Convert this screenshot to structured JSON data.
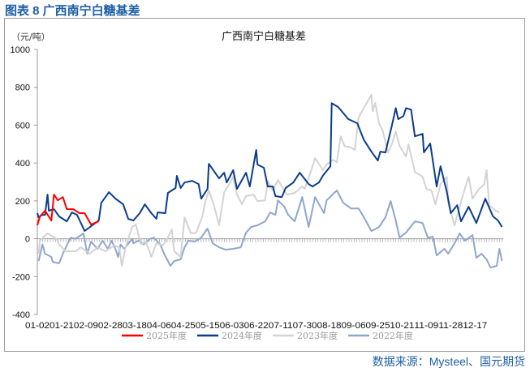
{
  "figure_label": "图表 8  广西南宁白糖基差",
  "source": "数据来源：Mysteel、国元期货",
  "chart_data": {
    "type": "line",
    "title": "广西南宁白糖基差",
    "ylabel": "（元/吨）",
    "xlabel": "",
    "ylim": [
      -400,
      1000
    ],
    "yticks": [
      "1000",
      "800",
      "600",
      "400",
      "200",
      "0",
      "-200",
      "-400"
    ],
    "xticks": [
      "01-02",
      "01-21",
      "02-09",
      "02-28",
      "03-18",
      "04-06",
      "04-25",
      "05-15",
      "06-03",
      "06-22",
      "07-11",
      "07-30",
      "08-18",
      "09-06",
      "09-25",
      "10-21",
      "11-09",
      "11-28",
      "12-17"
    ],
    "grid": false,
    "legend_position": "bottom",
    "series": [
      {
        "name": "2025年度",
        "color": "#ff0000",
        "points": [
          [
            "01-02",
            71
          ],
          [
            "01-04",
            118
          ],
          [
            "01-08",
            148
          ],
          [
            "01-13",
            96
          ],
          [
            "01-15",
            233
          ],
          [
            "01-18",
            203
          ],
          [
            "01-22",
            220
          ],
          [
            "01-25",
            156
          ],
          [
            "01-30",
            156
          ],
          [
            "02-04",
            135
          ],
          [
            "02-08",
            135
          ],
          [
            "02-13",
            75
          ],
          [
            "02-19",
            92
          ]
        ]
      },
      {
        "name": "2024年度",
        "color": "#0b3d8d",
        "points": [
          [
            "01-02",
            135
          ],
          [
            "01-03",
            113
          ],
          [
            "01-06",
            126
          ],
          [
            "01-08",
            126
          ],
          [
            "01-10",
            233
          ],
          [
            "01-11",
            148
          ],
          [
            "01-15",
            156
          ],
          [
            "01-19",
            118
          ],
          [
            "01-25",
            92
          ],
          [
            "01-29",
            139
          ],
          [
            "02-02",
            126
          ],
          [
            "02-08",
            41
          ],
          [
            "02-19",
            96
          ],
          [
            "02-21",
            190
          ],
          [
            "02-27",
            246
          ],
          [
            "03-04",
            212
          ],
          [
            "03-10",
            182
          ],
          [
            "03-14",
            105
          ],
          [
            "03-18",
            96
          ],
          [
            "03-23",
            135
          ],
          [
            "03-27",
            182
          ],
          [
            "04-01",
            135
          ],
          [
            "04-05",
            105
          ],
          [
            "04-06",
            139
          ],
          [
            "04-12",
            135
          ],
          [
            "04-14",
            242
          ],
          [
            "04-20",
            268
          ],
          [
            "04-21",
            332
          ],
          [
            "04-24",
            268
          ],
          [
            "04-27",
            297
          ],
          [
            "05-03",
            306
          ],
          [
            "05-08",
            289
          ],
          [
            "05-10",
            212
          ],
          [
            "05-15",
            263
          ],
          [
            "05-16",
            396
          ],
          [
            "05-24",
            319
          ],
          [
            "05-28",
            349
          ],
          [
            "05-30",
            297
          ],
          [
            "06-04",
            362
          ],
          [
            "06-07",
            263
          ],
          [
            "06-14",
            349
          ],
          [
            "06-17",
            276
          ],
          [
            "06-22",
            469
          ],
          [
            "06-23",
            392
          ],
          [
            "06-28",
            375
          ],
          [
            "07-01",
            276
          ],
          [
            "07-05",
            276
          ],
          [
            "07-07",
            225
          ],
          [
            "07-12",
            220
          ],
          [
            "07-15",
            268
          ],
          [
            "07-21",
            297
          ],
          [
            "07-26",
            349
          ],
          [
            "08-02",
            289
          ],
          [
            "08-05",
            276
          ],
          [
            "08-10",
            297
          ],
          [
            "08-13",
            332
          ],
          [
            "08-19",
            383
          ],
          [
            "08-20",
            716
          ],
          [
            "08-25",
            696
          ],
          [
            "09-02",
            632
          ],
          [
            "09-09",
            610
          ],
          [
            "09-14",
            524
          ],
          [
            "09-20",
            460
          ],
          [
            "09-25",
            413
          ],
          [
            "09-27",
            460
          ],
          [
            "10-01",
            456
          ],
          [
            "10-06",
            597
          ],
          [
            "10-09",
            690
          ],
          [
            "10-11",
            632
          ],
          [
            "10-15",
            648
          ],
          [
            "10-17",
            690
          ],
          [
            "10-21",
            682
          ],
          [
            "10-24",
            541
          ],
          [
            "10-30",
            554
          ],
          [
            "10-31",
            456
          ],
          [
            "11-05",
            503
          ],
          [
            "11-10",
            276
          ],
          [
            "11-13",
            383
          ],
          [
            "11-18",
            246
          ],
          [
            "11-21",
            135
          ],
          [
            "11-26",
            177
          ],
          [
            "11-29",
            92
          ],
          [
            "12-05",
            169
          ],
          [
            "12-11",
            83
          ],
          [
            "12-18",
            212
          ],
          [
            "12-24",
            118
          ],
          [
            "12-28",
            96
          ],
          [
            "12-31",
            62
          ]
        ]
      },
      {
        "name": "2023年度",
        "color": "#d3d3d3",
        "points": [
          [
            "01-03",
            -79
          ],
          [
            "01-04",
            -10
          ],
          [
            "01-10",
            28
          ],
          [
            "01-17",
            0
          ],
          [
            "01-19",
            -30
          ],
          [
            "01-24",
            -66
          ],
          [
            "02-01",
            -66
          ],
          [
            "02-05",
            -45
          ],
          [
            "02-12",
            -79
          ],
          [
            "02-18",
            -45
          ],
          [
            "02-24",
            -66
          ],
          [
            "03-03",
            -36
          ],
          [
            "03-07",
            -45
          ],
          [
            "03-09",
            -143
          ],
          [
            "03-12",
            -45
          ],
          [
            "03-17",
            62
          ],
          [
            "03-20",
            75
          ],
          [
            "03-24",
            -30
          ],
          [
            "03-28",
            -15
          ],
          [
            "04-01",
            -96
          ],
          [
            "04-05",
            -24
          ],
          [
            "04-10",
            -36
          ],
          [
            "04-14",
            6
          ],
          [
            "04-17",
            49
          ],
          [
            "04-19",
            -66
          ],
          [
            "04-24",
            -96
          ],
          [
            "04-27",
            113
          ],
          [
            "05-02",
            28
          ],
          [
            "05-06",
            32
          ],
          [
            "05-11",
            118
          ],
          [
            "05-13",
            190
          ],
          [
            "05-16",
            255
          ],
          [
            "05-20",
            177
          ],
          [
            "05-24",
            71
          ],
          [
            "05-28",
            246
          ],
          [
            "06-01",
            289
          ],
          [
            "06-04",
            327
          ],
          [
            "06-07",
            233
          ],
          [
            "06-11",
            182
          ],
          [
            "06-14",
            225
          ],
          [
            "06-20",
            233
          ],
          [
            "06-23",
            199
          ],
          [
            "06-29",
            203
          ],
          [
            "07-01",
            306
          ],
          [
            "07-05",
            255
          ],
          [
            "07-09",
            310
          ],
          [
            "07-16",
            233
          ],
          [
            "07-22",
            242
          ],
          [
            "07-28",
            276
          ],
          [
            "07-30",
            263
          ],
          [
            "08-04",
            362
          ],
          [
            "08-07",
            426
          ],
          [
            "08-10",
            396
          ],
          [
            "08-13",
            362
          ],
          [
            "08-16",
            392
          ],
          [
            "08-21",
            417
          ],
          [
            "08-24",
            404
          ],
          [
            "08-27",
            541
          ],
          [
            "08-30",
            490
          ],
          [
            "09-04",
            482
          ],
          [
            "09-07",
            469
          ],
          [
            "09-10",
            640
          ],
          [
            "09-14",
            690
          ],
          [
            "09-20",
            760
          ],
          [
            "09-21",
            674
          ],
          [
            "09-23",
            717
          ],
          [
            "09-26",
            610
          ],
          [
            "09-29",
            567
          ],
          [
            "10-03",
            456
          ],
          [
            "10-06",
            499
          ],
          [
            "10-09",
            567
          ],
          [
            "10-12",
            490
          ],
          [
            "10-17",
            434
          ],
          [
            "10-19",
            499
          ],
          [
            "10-24",
            353
          ],
          [
            "10-30",
            327
          ],
          [
            "11-02",
            263
          ],
          [
            "11-06",
            255
          ],
          [
            "11-09",
            182
          ],
          [
            "11-13",
            289
          ],
          [
            "11-18",
            327
          ],
          [
            "11-19",
            190
          ],
          [
            "11-24",
            71
          ],
          [
            "11-30",
            220
          ],
          [
            "12-05",
            327
          ],
          [
            "12-08",
            212
          ],
          [
            "12-13",
            263
          ],
          [
            "12-17",
            285
          ],
          [
            "12-19",
            362
          ],
          [
            "12-21",
            177
          ],
          [
            "12-26",
            148
          ],
          [
            "12-29",
            139
          ]
        ]
      },
      {
        "name": "2022年度",
        "color": "#8fa6cc",
        "points": [
          [
            "01-03",
            -118
          ],
          [
            "01-06",
            -30
          ],
          [
            "01-08",
            -79
          ],
          [
            "01-13",
            -96
          ],
          [
            "01-14",
            -122
          ],
          [
            "01-19",
            -130
          ],
          [
            "01-22",
            -79
          ],
          [
            "01-25",
            -36
          ],
          [
            "01-28",
            6
          ],
          [
            "02-01",
            0
          ],
          [
            "02-07",
            28
          ],
          [
            "02-10",
            -79
          ],
          [
            "02-13",
            -15
          ],
          [
            "02-18",
            -53
          ],
          [
            "02-22",
            -10
          ],
          [
            "02-26",
            -53
          ],
          [
            "03-01",
            -10
          ],
          [
            "03-04",
            -53
          ],
          [
            "03-06",
            -96
          ],
          [
            "03-08",
            -30
          ],
          [
            "03-11",
            -53
          ],
          [
            "03-17",
            0
          ],
          [
            "03-18",
            -24
          ],
          [
            "03-22",
            -10
          ],
          [
            "03-26",
            -30
          ],
          [
            "03-31",
            0
          ],
          [
            "04-03",
            6
          ],
          [
            "04-08",
            -30
          ],
          [
            "04-11",
            -79
          ],
          [
            "04-16",
            -143
          ],
          [
            "04-19",
            -118
          ],
          [
            "04-24",
            -109
          ],
          [
            "04-27",
            -45
          ],
          [
            "04-30",
            -10
          ],
          [
            "05-05",
            -15
          ],
          [
            "05-10",
            6
          ],
          [
            "05-15",
            54
          ],
          [
            "05-19",
            -24
          ],
          [
            "05-24",
            -45
          ],
          [
            "05-29",
            -58
          ],
          [
            "06-04",
            -53
          ],
          [
            "06-10",
            -45
          ],
          [
            "06-14",
            32
          ],
          [
            "06-18",
            62
          ],
          [
            "06-23",
            71
          ],
          [
            "06-29",
            92
          ],
          [
            "07-03",
            139
          ],
          [
            "07-07",
            126
          ],
          [
            "07-09",
            203
          ],
          [
            "07-14",
            169
          ],
          [
            "07-17",
            126
          ],
          [
            "07-22",
            92
          ],
          [
            "07-28",
            220
          ],
          [
            "08-02",
            62
          ],
          [
            "08-07",
            220
          ],
          [
            "08-14",
            135
          ],
          [
            "08-16",
            203
          ],
          [
            "08-24",
            255
          ],
          [
            "08-29",
            190
          ],
          [
            "09-04",
            160
          ],
          [
            "09-10",
            160
          ],
          [
            "09-13",
            126
          ],
          [
            "09-20",
            41
          ],
          [
            "09-26",
            62
          ],
          [
            "10-01",
            113
          ],
          [
            "10-05",
            199
          ],
          [
            "10-09",
            96
          ],
          [
            "10-12",
            6
          ],
          [
            "10-17",
            32
          ],
          [
            "10-24",
            92
          ],
          [
            "10-30",
            83
          ],
          [
            "11-03",
            6
          ],
          [
            "11-07",
            11
          ],
          [
            "11-10",
            -88
          ],
          [
            "11-16",
            -53
          ],
          [
            "11-19",
            -79
          ],
          [
            "11-24",
            -24
          ],
          [
            "11-28",
            28
          ],
          [
            "12-02",
            -10
          ],
          [
            "12-08",
            19
          ],
          [
            "12-11",
            -101
          ],
          [
            "12-15",
            -79
          ],
          [
            "12-19",
            -109
          ],
          [
            "12-22",
            -152
          ],
          [
            "12-27",
            -143
          ],
          [
            "12-29",
            -53
          ],
          [
            "12-31",
            -118
          ]
        ]
      }
    ]
  }
}
